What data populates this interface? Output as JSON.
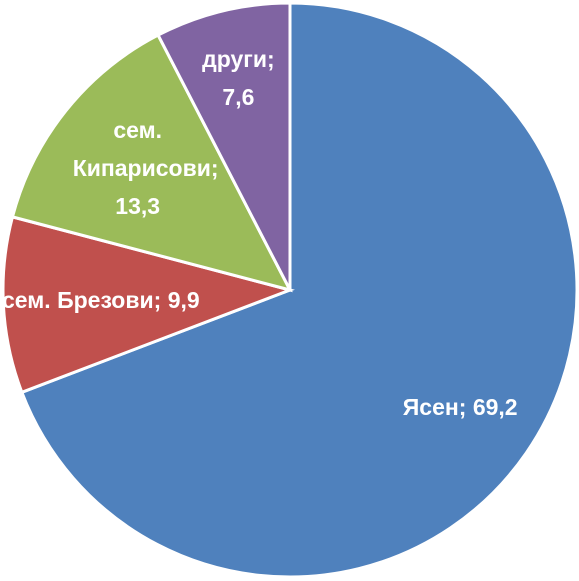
{
  "chart_data": {
    "type": "pie",
    "categories": [
      "Ясен;",
      "сем. Брезови;",
      "сем. Кипарисови;",
      "други;"
    ],
    "values": [
      69.2,
      9.9,
      13.3,
      7.6
    ],
    "value_labels": [
      "69,2",
      "9,9",
      "13,3",
      "7,6"
    ],
    "colors": [
      "#4f81bd",
      "#c0504d",
      "#9bbb59",
      "#8064a2"
    ]
  }
}
